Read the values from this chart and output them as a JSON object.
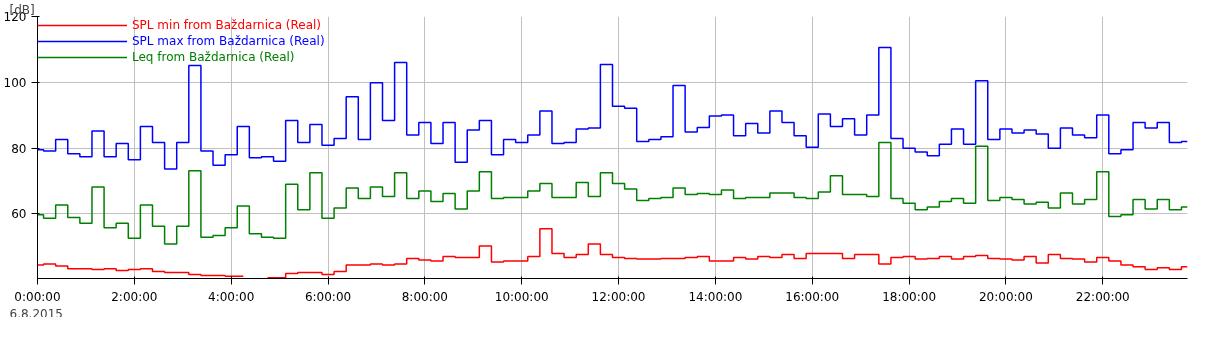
{
  "chart_data": {
    "type": "step",
    "xlabel": null,
    "ylabel": "[dB]",
    "x": [
      0,
      0.25,
      0.5,
      0.75,
      1,
      1.25,
      1.5,
      1.75,
      2,
      2.25,
      2.5,
      2.75,
      3,
      3.25,
      3.5,
      3.75,
      4,
      4.25,
      4.5,
      4.75,
      5,
      5.25,
      5.5,
      5.75,
      6,
      6.25,
      6.5,
      6.75,
      7,
      7.25,
      7.5,
      7.75,
      8,
      8.25,
      8.5,
      8.75,
      9,
      9.25,
      9.5,
      9.75,
      10,
      10.25,
      10.5,
      10.75,
      11,
      11.25,
      11.5,
      11.75,
      12,
      12.25,
      12.5,
      12.75,
      13,
      13.25,
      13.5,
      13.75,
      14,
      14.25,
      14.5,
      14.75,
      15,
      15.25,
      15.5,
      15.75,
      16,
      16.25,
      16.5,
      16.75,
      17,
      17.25,
      17.5,
      17.75,
      18,
      18.25,
      18.5,
      18.75,
      19,
      19.25,
      19.5,
      19.75,
      20,
      20.25,
      20.5,
      20.75,
      21,
      21.25,
      21.5,
      21.75,
      22,
      22.25,
      22.5,
      22.75,
      23,
      23.25,
      23.5,
      23.75
    ],
    "series": [
      {
        "name": "SPL min from Baždarnica (Real)",
        "color": "#ff0000",
        "values": [
          44.5,
          44.8,
          44.2,
          43.4,
          43.4,
          43.1,
          43.4,
          42.8,
          43.1,
          43.4,
          42.5,
          42.2,
          42.2,
          41.6,
          41.3,
          41.3,
          41.1,
          41.1,
          null,
          40.6,
          40.6,
          41.9,
          42.2,
          42.2,
          41.6,
          42.5,
          44.5,
          44.5,
          44.8,
          44.5,
          44.8,
          46.5,
          46.0,
          45.7,
          47.1,
          46.8,
          46.8,
          50.3,
          45.4,
          45.7,
          45.7,
          47.1,
          55.5,
          48.0,
          46.8,
          47.7,
          50.9,
          47.7,
          46.8,
          46.5,
          46.3,
          46.3,
          46.5,
          46.5,
          46.8,
          47.1,
          45.7,
          45.7,
          46.8,
          46.3,
          47.1,
          46.8,
          47.7,
          46.5,
          48.0,
          48.0,
          48.0,
          46.5,
          47.7,
          47.7,
          44.8,
          46.8,
          47.1,
          46.3,
          46.5,
          47.1,
          46.3,
          47.1,
          47.4,
          46.5,
          46.3,
          46.0,
          47.1,
          45.1,
          47.7,
          46.5,
          46.3,
          45.4,
          46.8,
          45.7,
          44.5,
          44.0,
          43.1,
          43.7,
          43.1,
          44.0
        ]
      },
      {
        "name": "SPL max from Baždarnica (Real)",
        "color": "#0000ff",
        "values": [
          79.5,
          79.1,
          82.6,
          78.3,
          77.4,
          85.2,
          77.4,
          81.4,
          76.5,
          86.6,
          81.7,
          73.7,
          81.7,
          105.1,
          79.1,
          74.8,
          78.0,
          86.6,
          77.1,
          77.4,
          76.0,
          88.4,
          81.7,
          87.2,
          80.9,
          82.9,
          95.6,
          82.6,
          99.9,
          88.4,
          106.0,
          84.0,
          87.8,
          81.4,
          87.8,
          75.7,
          85.5,
          88.4,
          78.0,
          82.6,
          81.7,
          84.0,
          91.3,
          81.4,
          81.7,
          85.8,
          86.1,
          105.4,
          92.7,
          92.1,
          82.0,
          82.6,
          83.5,
          99.0,
          84.9,
          86.3,
          89.8,
          90.1,
          83.8,
          87.5,
          84.6,
          91.3,
          87.8,
          83.8,
          80.3,
          90.4,
          86.6,
          88.9,
          84.0,
          90.1,
          110.6,
          82.9,
          80.0,
          78.8,
          77.7,
          81.2,
          85.8,
          81.2,
          100.5,
          82.6,
          85.8,
          84.6,
          85.5,
          84.3,
          80.0,
          86.1,
          84.0,
          83.2,
          90.1,
          78.3,
          79.5,
          87.8,
          86.1,
          87.8,
          81.7,
          82.0
        ]
      },
      {
        "name": "Leq from Baždarnica (Real)",
        "color": "#008000",
        "values": [
          59.8,
          58.7,
          62.7,
          58.9,
          57.2,
          68.2,
          55.8,
          57.2,
          52.6,
          62.7,
          56.3,
          50.9,
          56.3,
          73.1,
          52.9,
          53.5,
          55.8,
          62.4,
          54.0,
          52.9,
          52.6,
          69.0,
          61.3,
          72.5,
          58.7,
          61.8,
          67.9,
          64.7,
          68.2,
          65.3,
          72.5,
          64.7,
          67.0,
          63.8,
          66.2,
          61.5,
          67.0,
          72.8,
          64.7,
          65.0,
          65.0,
          67.0,
          69.3,
          65.0,
          65.0,
          69.6,
          65.3,
          72.5,
          69.3,
          67.6,
          64.1,
          64.7,
          65.0,
          67.9,
          65.9,
          66.2,
          65.9,
          67.3,
          64.7,
          65.0,
          65.0,
          66.4,
          66.4,
          65.0,
          64.7,
          66.7,
          71.6,
          65.9,
          65.9,
          65.3,
          81.7,
          64.7,
          63.3,
          61.3,
          62.1,
          63.8,
          64.7,
          63.3,
          80.6,
          64.1,
          65.0,
          64.4,
          63.0,
          63.6,
          61.8,
          66.4,
          63.0,
          64.4,
          72.8,
          59.2,
          59.8,
          64.4,
          61.5,
          64.4,
          61.3,
          62.1
        ]
      }
    ],
    "xlim": [
      0,
      23.75
    ],
    "xticks": [
      {
        "value": 0,
        "label": "0:00:00"
      },
      {
        "value": 2,
        "label": "2:00:00"
      },
      {
        "value": 4,
        "label": "4:00:00"
      },
      {
        "value": 6,
        "label": "6:00:00"
      },
      {
        "value": 8,
        "label": "8:00:00"
      },
      {
        "value": 10,
        "label": "10:00:00"
      },
      {
        "value": 12,
        "label": "12:00:00"
      },
      {
        "value": 14,
        "label": "14:00:00"
      },
      {
        "value": 16,
        "label": "16:00:00"
      },
      {
        "value": 18,
        "label": "18:00:00"
      },
      {
        "value": 20,
        "label": "20:00:00"
      },
      {
        "value": 22,
        "label": "22:00:00"
      }
    ],
    "ylim": [
      40.4,
      120
    ],
    "yticks": [
      60,
      80,
      100,
      120
    ],
    "grid": true,
    "legend": "top left",
    "annotations": [
      "6.8.2015"
    ]
  }
}
